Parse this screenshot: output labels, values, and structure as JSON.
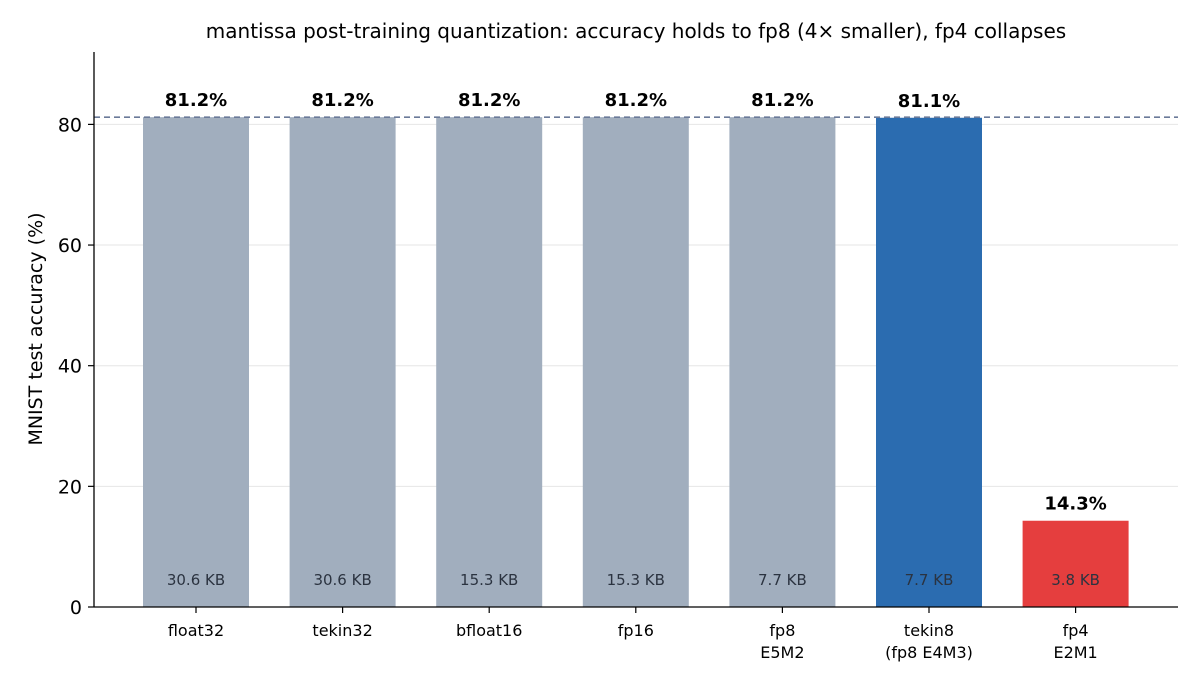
{
  "chart_data": {
    "type": "bar",
    "title": "mantissa post-training quantization: accuracy holds to fp8 (4× smaller), fp4 collapses",
    "xlabel": "",
    "ylabel": "MNIST test accuracy (%)",
    "ylim": [
      0,
      92
    ],
    "yticks": [
      "0",
      "20",
      "40",
      "60",
      "80"
    ],
    "grid": "horizontal",
    "reference_line": {
      "value": 81.2,
      "style": "dashed"
    },
    "categories": [
      [
        "float32"
      ],
      [
        "tekin32"
      ],
      [
        "bfloat16"
      ],
      [
        "fp16"
      ],
      [
        "fp8",
        "E5M2"
      ],
      [
        "tekin8",
        "(fp8 E4M3)"
      ],
      [
        "fp4",
        "E2M1"
      ]
    ],
    "values": [
      81.2,
      81.2,
      81.2,
      81.2,
      81.2,
      81.1,
      14.3
    ],
    "value_labels": [
      "81.2%",
      "81.2%",
      "81.2%",
      "81.2%",
      "81.2%",
      "81.1%",
      "14.3%"
    ],
    "size_labels": [
      "30.6 KB",
      "30.6 KB",
      "15.3 KB",
      "15.3 KB",
      "7.7 KB",
      "7.7 KB",
      "3.8 KB"
    ],
    "bar_colors": [
      "#a1aebe",
      "#a1aebe",
      "#a1aebe",
      "#a1aebe",
      "#a1aebe",
      "#2b6cb0",
      "#e53e3e"
    ]
  }
}
